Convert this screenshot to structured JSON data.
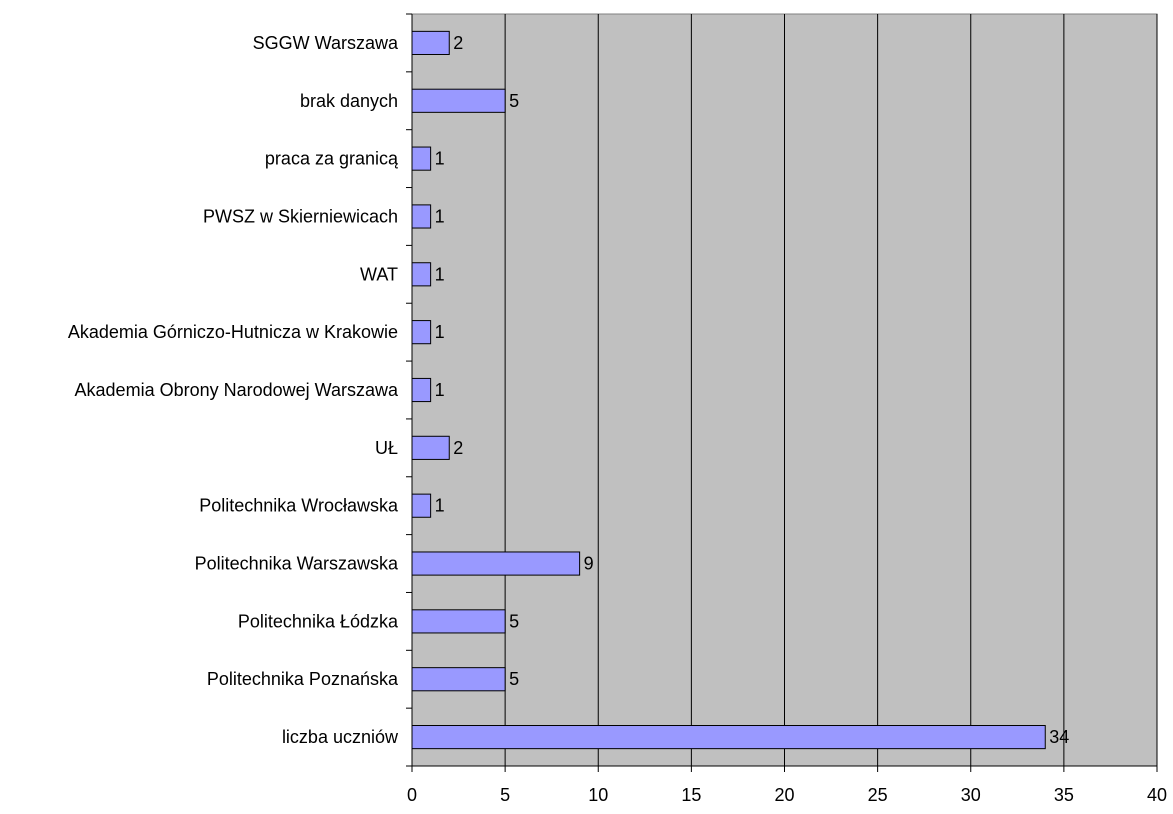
{
  "chart_data": {
    "type": "bar",
    "orientation": "horizontal",
    "title": "",
    "xlabel": "",
    "ylabel": "",
    "xlim": [
      0,
      40
    ],
    "xticks": [
      "0",
      "5",
      "10",
      "15",
      "20",
      "25",
      "30",
      "35",
      "40"
    ],
    "grid": "vertical",
    "categories": [
      "SGGW Warszawa",
      "brak danych",
      "praca za granicą",
      "PWSZ w Skierniewicach",
      "WAT",
      "Akademia Górniczo-Hutnicza w Krakowie",
      "Akademia Obrony Narodowej Warszawa",
      "UŁ",
      "Politechnika Wrocławska",
      "Politechnika Warszawska",
      "Politechnika Łódzka",
      "Politechnika Poznańska",
      "liczba uczniów"
    ],
    "values": [
      2,
      5,
      1,
      1,
      1,
      1,
      1,
      2,
      1,
      9,
      5,
      5,
      34
    ],
    "data_labels": [
      "2",
      "5",
      "1",
      "1",
      "1",
      "1",
      "1",
      "2",
      "1",
      "9",
      "5",
      "5",
      "34"
    ],
    "colors": {
      "bar_fill": "#9999ff",
      "plot_background": "#c0c0c0",
      "grid": "#000000"
    }
  }
}
